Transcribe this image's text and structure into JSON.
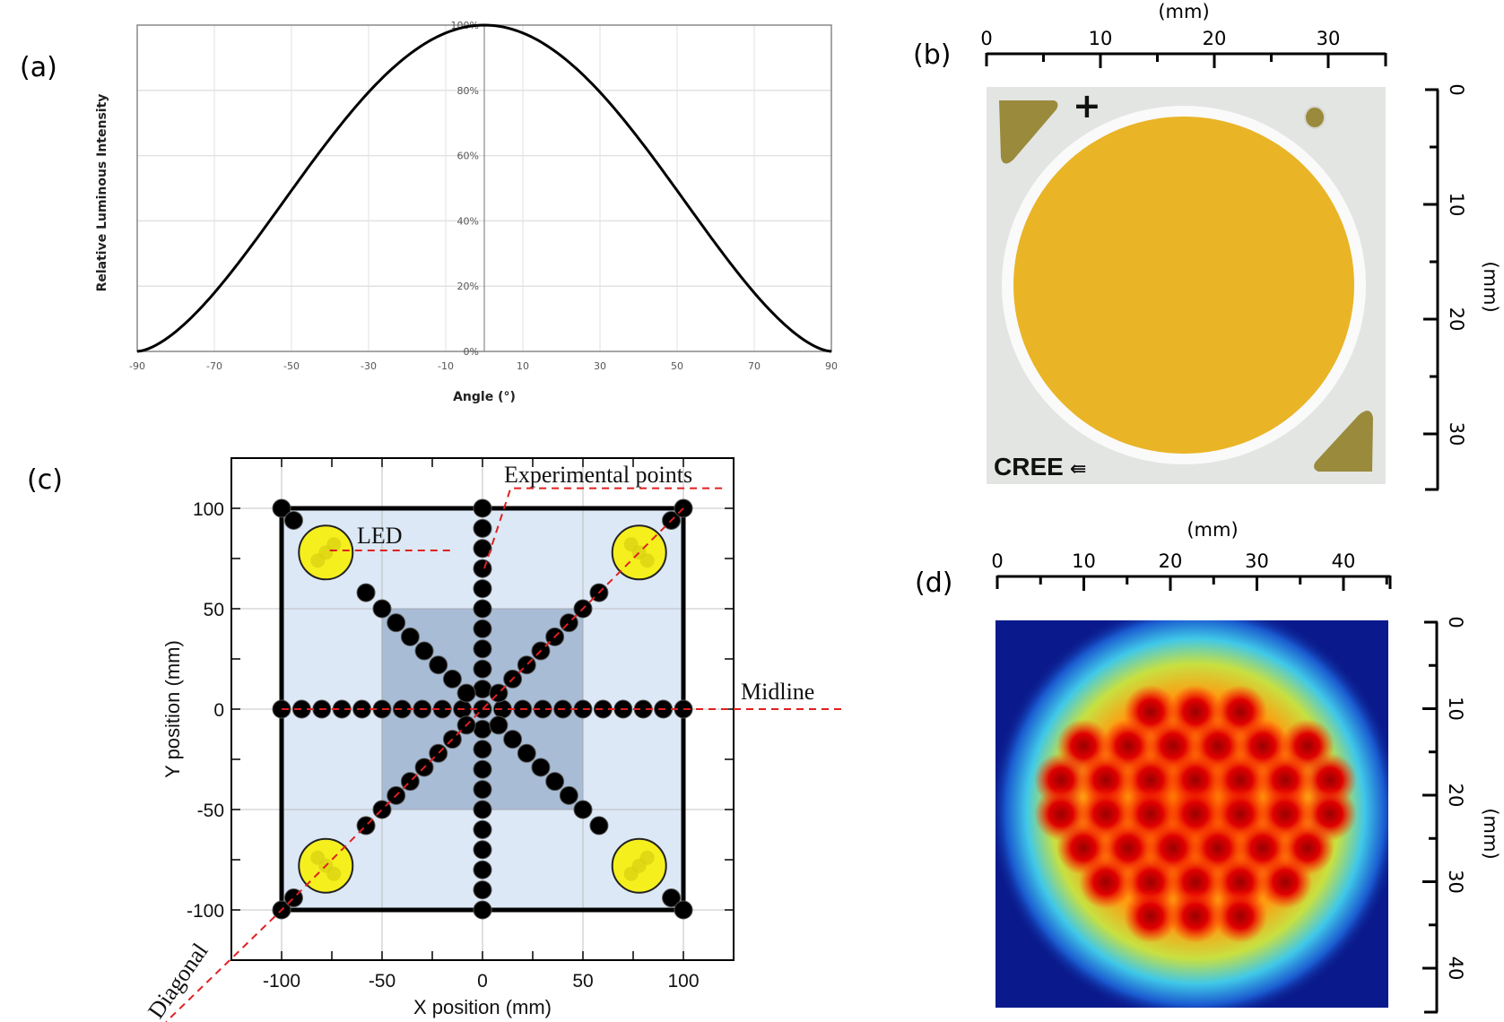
{
  "panels": {
    "a": {
      "label": "(a)"
    },
    "b": {
      "label": "(b)",
      "brand_text": "CREE",
      "polarity_mark": "+",
      "ruler_unit": "(mm)",
      "top_ruler_ticks": [
        "0",
        "10",
        "20",
        "30"
      ],
      "right_ruler_ticks": [
        "0",
        "10",
        "20",
        "30"
      ]
    },
    "c": {
      "label": "(c)"
    },
    "d": {
      "label": "(d)",
      "ruler_unit": "(mm)",
      "top_ruler_ticks": [
        "0",
        "10",
        "20",
        "30",
        "40"
      ],
      "right_ruler_ticks": [
        "0",
        "10",
        "20",
        "30",
        "40"
      ]
    }
  },
  "chart_data": [
    {
      "id": "a",
      "type": "line",
      "title": "",
      "xlabel": "Angle (°)",
      "ylabel": "Relative Luminous Intensity",
      "xlim": [
        -90,
        90
      ],
      "ylim": [
        0,
        100
      ],
      "x_ticks": [
        "-90",
        "-70",
        "-50",
        "-30",
        "-10",
        "10",
        "30",
        "50",
        "70",
        "90"
      ],
      "y_ticks": [
        "0%",
        "20%",
        "40%",
        "60%",
        "80%",
        "100%"
      ],
      "grid": true,
      "series": [
        {
          "name": "Relative Luminous Intensity",
          "x": [
            -90,
            -80,
            -70,
            -60,
            -50,
            -40,
            -30,
            -20,
            -10,
            0,
            10,
            20,
            30,
            40,
            50,
            60,
            70,
            80,
            90
          ],
          "y": [
            0,
            3,
            12,
            25,
            41,
            58,
            75,
            88,
            97,
            100,
            97,
            88,
            75,
            58,
            41,
            25,
            12,
            3,
            0
          ]
        }
      ]
    },
    {
      "id": "c",
      "type": "scatter",
      "title": "",
      "xlabel": "X position (mm)",
      "ylabel": "Y position (mm)",
      "xlim": [
        -125,
        125
      ],
      "ylim": [
        -125,
        125
      ],
      "x_ticks": [
        "-100",
        "-50",
        "0",
        "50",
        "100"
      ],
      "y_ticks": [
        "100",
        "50",
        "0",
        "-50",
        "-100"
      ],
      "grid": true,
      "annotations": [
        "Experimental points",
        "LED",
        "Midline",
        "Diagonal"
      ],
      "regions": [
        {
          "name": "outer-square",
          "x": [
            -100,
            100
          ],
          "y": [
            -100,
            100
          ],
          "color": "#dce8f5"
        },
        {
          "name": "inner-square",
          "x": [
            -50,
            50
          ],
          "y": [
            -50,
            50
          ],
          "color": "#a8bcd6"
        }
      ],
      "leds": [
        {
          "x": -78,
          "y": 78
        },
        {
          "x": 78,
          "y": 78
        },
        {
          "x": -78,
          "y": -78
        },
        {
          "x": 78,
          "y": -78
        }
      ],
      "series": [
        {
          "name": "Midline points",
          "y": 0,
          "x": [
            -100,
            -90,
            -80,
            -70,
            -60,
            -50,
            -40,
            -30,
            -20,
            -10,
            0,
            10,
            20,
            30,
            40,
            50,
            60,
            70,
            80,
            90,
            100
          ]
        },
        {
          "name": "Vertical points",
          "x": 0,
          "y": [
            100,
            90,
            80,
            70,
            60,
            50,
            40,
            30,
            20,
            10,
            0,
            -10,
            -20,
            -30,
            -40,
            -50,
            -60,
            -70,
            -80,
            -90,
            -100
          ]
        },
        {
          "name": "Diagonal points",
          "t": [
            -100,
            -94,
            -58,
            -50,
            -43,
            -36,
            -29,
            -22,
            -15,
            -8,
            0,
            8,
            15,
            22,
            29,
            36,
            43,
            50,
            58,
            94,
            100
          ]
        },
        {
          "name": "Anti-diagonal points",
          "t": [
            -100,
            -94,
            -58,
            -50,
            -43,
            -36,
            -29,
            -22,
            -15,
            -8,
            0,
            8,
            15,
            22,
            29,
            36,
            43,
            50,
            58,
            94,
            100
          ]
        }
      ]
    },
    {
      "id": "d",
      "type": "heatmap",
      "title": "",
      "xlabel": "(mm)",
      "ylabel": "(mm)",
      "xlim": [
        0,
        45
      ],
      "ylim": [
        0,
        45
      ],
      "x_ticks": [
        "0",
        "10",
        "20",
        "30",
        "40"
      ],
      "y_ticks": [
        "0",
        "10",
        "20",
        "30",
        "40"
      ],
      "colormap": "jet",
      "hotspot_rows": [
        3,
        6,
        7,
        7,
        6,
        5,
        3
      ]
    }
  ],
  "colors": {
    "curve": "#000000",
    "grid_a": "#dddddd",
    "outer_region": "#dce8f5",
    "inner_region": "#a8bcd6",
    "point": "#000000",
    "led_fill": "#f5ef1e",
    "annotation_line": "#e02020",
    "chip_substrate": "#e3e5e3",
    "chip_phosphor": "#e9b426",
    "chip_pad": "#9a8a3c",
    "heatmap_bg": "#0a1a8c"
  }
}
